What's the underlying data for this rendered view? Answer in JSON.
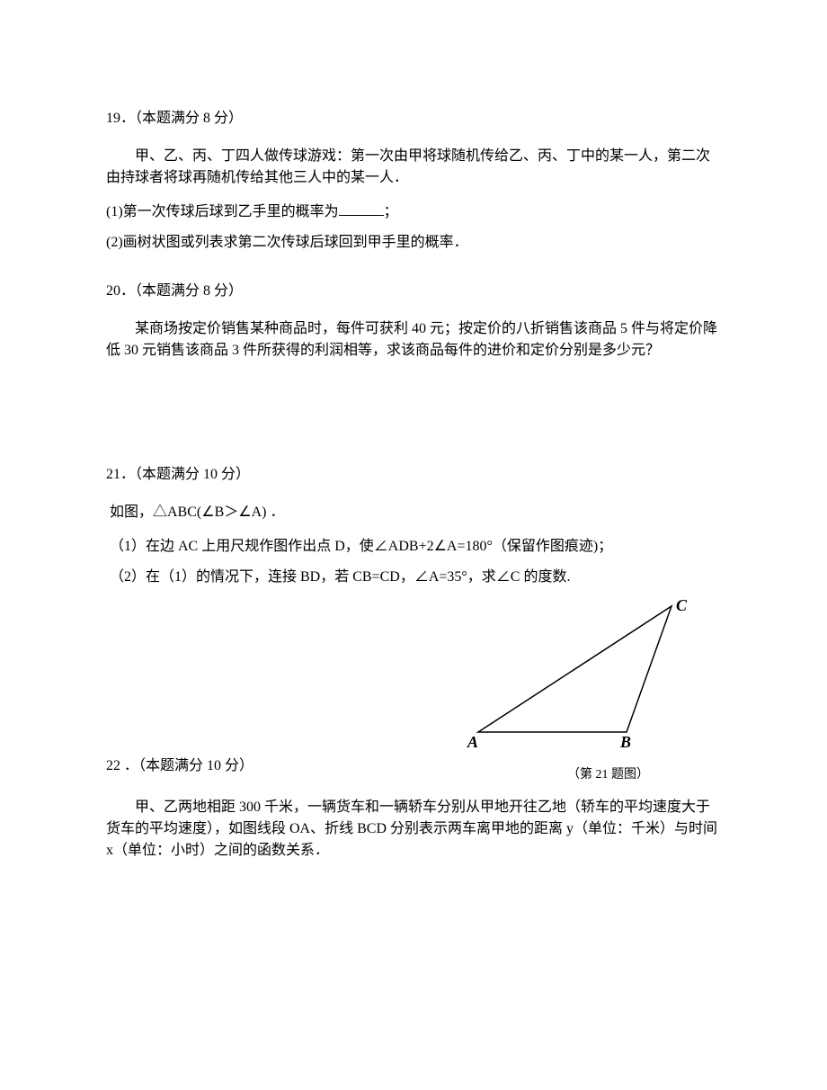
{
  "q19": {
    "header": "19．（本题满分 8 分）",
    "intro": "甲、乙、丙、丁四人做传球游戏：第一次由甲将球随机传给乙、丙、丁中的某一人，第二次由持球者将球再随机传给其他三人中的某一人．",
    "part1_pre": "(1)第一次传球后球到乙手里的概率为",
    "part1_post": "；",
    "part2": "(2)画树状图或列表求第二次传球后球回到甲手里的概率．"
  },
  "q20": {
    "header": "20．（本题满分 8 分）",
    "body": "某商场按定价销售某种商品时，每件可获利 40 元；按定价的八折销售该商品 5 件与将定价降低 30 元销售该商品 3 件所获得的利润相等，求该商品每件的进价和定价分别是多少元？"
  },
  "q21": {
    "header": "21．（本题满分 10 分）",
    "intro": "如图，△ABC(∠B＞∠A) ．",
    "part1": "（1）在边 AC 上用尺规作图作出点 D，使∠ADB+2∠A=180°（保留作图痕迹)；",
    "part2": "（2）在（1）的情况下，连接 BD，若 CB=CD，∠A=35°，求∠C 的度数.",
    "labels": {
      "A": "A",
      "B": "B",
      "C": "C"
    },
    "caption": "（第 21 题图）",
    "triangle": {
      "stroke": "#000000",
      "stroke_width": 1.5,
      "points": {
        "A": [
          10,
          150
        ],
        "B": [
          175,
          150
        ],
        "C": [
          225,
          10
        ]
      }
    }
  },
  "q22": {
    "header": "22 ．（本题满分 10 分）",
    "body": "甲、乙两地相距 300 千米，一辆货车和一辆轿车分别从甲地开往乙地（轿车的平均速度大于货车的平均速度），如图线段 OA、折线 BCD 分别表示两车离甲地的距离 y（单位：千米）与时间 x（单位：小时）之间的函数关系．"
  }
}
